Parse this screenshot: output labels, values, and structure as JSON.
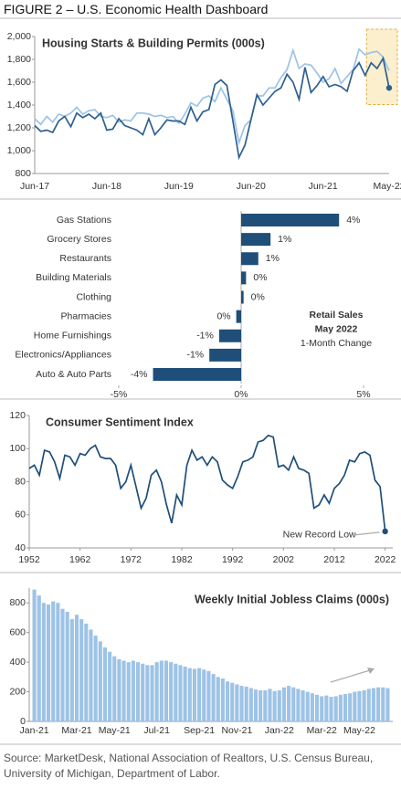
{
  "title": "FIGURE 2 – U.S. Economic Health Dashboard",
  "source": "Source: MarketDesk, National Association of Realtors, U.S. Census Bureau, University of Michigan, Department of Labor.",
  "chart_data": [
    {
      "type": "line",
      "title": "Housing Starts & Building Permits (000s)",
      "categories": [
        "Jun-17",
        null,
        null,
        null,
        null,
        null,
        null,
        null,
        null,
        null,
        null,
        null,
        "Jun-18",
        null,
        null,
        null,
        null,
        null,
        null,
        null,
        null,
        null,
        null,
        null,
        "Jun-19",
        null,
        null,
        null,
        null,
        null,
        null,
        null,
        null,
        null,
        null,
        null,
        "Jun-20",
        null,
        null,
        null,
        null,
        null,
        null,
        null,
        null,
        null,
        null,
        null,
        "Jun-21",
        null,
        null,
        null,
        null,
        null,
        null,
        null,
        null,
        null,
        null,
        "May-22"
      ],
      "series": [
        {
          "color": "#2e5f8f",
          "values": [
            1220,
            1170,
            1180,
            1160,
            1260,
            1300,
            1210,
            1330,
            1290,
            1320,
            1280,
            1330,
            1180,
            1190,
            1280,
            1220,
            1200,
            1180,
            1140,
            1280,
            1140,
            1200,
            1270,
            1260,
            1260,
            1230,
            1380,
            1260,
            1340,
            1360,
            1580,
            1620,
            1570,
            1260,
            940,
            1050,
            1270,
            1490,
            1400,
            1460,
            1520,
            1550,
            1670,
            1600,
            1450,
            1730,
            1510,
            1570,
            1650,
            1560,
            1580,
            1560,
            1520,
            1700,
            1770,
            1660,
            1770,
            1720,
            1810,
            1550
          ]
        },
        {
          "color": "#9dc3e6",
          "values": [
            1280,
            1230,
            1300,
            1250,
            1320,
            1300,
            1330,
            1380,
            1320,
            1350,
            1360,
            1300,
            1290,
            1310,
            1250,
            1270,
            1260,
            1330,
            1330,
            1320,
            1300,
            1310,
            1290,
            1300,
            1240,
            1320,
            1420,
            1390,
            1460,
            1480,
            1430,
            1550,
            1450,
            1350,
            1070,
            1220,
            1270,
            1480,
            1480,
            1550,
            1550,
            1640,
            1710,
            1880,
            1720,
            1760,
            1750,
            1680,
            1600,
            1630,
            1720,
            1590,
            1650,
            1710,
            1890,
            1840,
            1860,
            1870,
            1820,
            1700
          ]
        }
      ],
      "ylim": [
        800,
        2000
      ],
      "yticks": [
        800,
        {
          "value": 1000,
          "label": "1,000"
        },
        {
          "value": 1200,
          "label": "1,200"
        },
        {
          "value": 1400,
          "label": "1,400"
        },
        {
          "value": 1600,
          "label": "1,600"
        },
        {
          "value": 1800,
          "label": "1,800"
        },
        {
          "value": 2000,
          "label": "2,000"
        }
      ]
    },
    {
      "type": "barh",
      "categories": [
        "Gas Stations",
        "Grocery Stores",
        "Restaurants",
        "Building Materials",
        "Clothing",
        "Pharmacies",
        "Home Furnishings",
        "Electronics/Appliances",
        "Auto & Auto Parts"
      ],
      "values": [
        4.0,
        1.2,
        0.7,
        0.2,
        0.1,
        -0.2,
        -0.9,
        -1.3,
        -3.6
      ],
      "value_labels": [
        "4%",
        "1%",
        "1%",
        "0%",
        "0%",
        "0%",
        "-1%",
        "-1%",
        "-4%"
      ],
      "color": "#1f4e79",
      "annotations": [
        "Retail Sales",
        "May 2022",
        "1-Month Change"
      ],
      "xlim": [
        -5,
        5
      ],
      "xticks": [
        {
          "value": -5,
          "label": "-5%"
        },
        {
          "value": 0,
          "label": "0%"
        },
        {
          "value": 5,
          "label": "5%"
        }
      ]
    },
    {
      "type": "line",
      "title": "Consumer Sentiment Index",
      "annotation": "New Record Low",
      "x": [
        1952,
        1953,
        1954,
        1955,
        1956,
        1957,
        1958,
        1959,
        1960,
        1961,
        1962,
        1963,
        1964,
        1965,
        1966,
        1967,
        1968,
        1969,
        1970,
        1971,
        1972,
        1973,
        1974,
        1975,
        1976,
        1977,
        1978,
        1979,
        1980,
        1981,
        1982,
        1983,
        1984,
        1985,
        1986,
        1987,
        1988,
        1989,
        1990,
        1991,
        1992,
        1993,
        1994,
        1995,
        1996,
        1997,
        1998,
        1999,
        2000,
        2001,
        2002,
        2003,
        2004,
        2005,
        2006,
        2007,
        2008,
        2009,
        2010,
        2011,
        2012,
        2013,
        2014,
        2015,
        2016,
        2017,
        2018,
        2019,
        2020,
        2021,
        2022
      ],
      "series": [
        {
          "color": "#1f4e79",
          "values": [
            88,
            90,
            84,
            99,
            98,
            92,
            82,
            96,
            95,
            90,
            97,
            96,
            100,
            102,
            95,
            94,
            94,
            90,
            76,
            80,
            90,
            77,
            64,
            70,
            84,
            87,
            80,
            66,
            55,
            72,
            66,
            90,
            99,
            93,
            95,
            90,
            95,
            92,
            81,
            78,
            76,
            83,
            92,
            93,
            95,
            104,
            105,
            108,
            107,
            89,
            90,
            87,
            95,
            88,
            87,
            85,
            64,
            66,
            72,
            67,
            76,
            79,
            84,
            93,
            92,
            97,
            98,
            96,
            81,
            77,
            50
          ]
        }
      ],
      "xlim": [
        1952,
        2023.5
      ],
      "xticks": [
        1952,
        1962,
        1972,
        1982,
        1992,
        2002,
        2012,
        2022
      ],
      "ylim": [
        40,
        120
      ],
      "yticks": [
        40,
        60,
        80,
        100,
        120
      ]
    },
    {
      "type": "bar",
      "title": "Weekly Initial Jobless Claims (000s)",
      "categories": [
        "Jan-21",
        null,
        null,
        null,
        null,
        null,
        null,
        null,
        null,
        "Mar-21",
        null,
        null,
        null,
        null,
        null,
        null,
        null,
        "May-21",
        null,
        null,
        null,
        null,
        null,
        null,
        null,
        null,
        "Jul-21",
        null,
        null,
        null,
        null,
        null,
        null,
        null,
        null,
        "Sep-21",
        null,
        null,
        null,
        null,
        null,
        null,
        null,
        "Nov-21",
        null,
        null,
        null,
        null,
        null,
        null,
        null,
        null,
        "Jan-22",
        null,
        null,
        null,
        null,
        null,
        null,
        null,
        null,
        "Mar-22",
        null,
        null,
        null,
        null,
        null,
        null,
        null,
        "May-22",
        null,
        null,
        null,
        null,
        null,
        null
      ],
      "values": [
        890,
        850,
        800,
        790,
        810,
        800,
        760,
        740,
        690,
        720,
        690,
        660,
        620,
        580,
        540,
        500,
        470,
        440,
        420,
        410,
        400,
        410,
        400,
        390,
        380,
        380,
        400,
        410,
        410,
        400,
        390,
        380,
        370,
        360,
        355,
        360,
        350,
        340,
        320,
        300,
        290,
        270,
        260,
        250,
        240,
        235,
        225,
        215,
        210,
        210,
        220,
        205,
        210,
        230,
        240,
        230,
        220,
        210,
        200,
        190,
        180,
        170,
        175,
        166,
        170,
        180,
        185,
        190,
        200,
        205,
        210,
        220,
        225,
        230,
        230,
        225
      ],
      "color": "#9dc3e6",
      "ylim": [
        0,
        900
      ],
      "yticks": [
        0,
        200,
        400,
        600,
        800
      ]
    }
  ]
}
